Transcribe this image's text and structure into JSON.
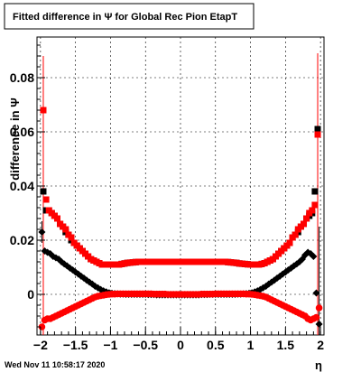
{
  "chart_data": {
    "type": "scatter",
    "title": "Fitted difference in  Ψ  for Global Rec Pion EtapT",
    "xlabel": "η",
    "ylabel": "difference in  Ψ",
    "xlim": [
      -2.05,
      2.05
    ],
    "ylim": [
      -0.015,
      0.095
    ],
    "x_ticks": [
      -2,
      -1.5,
      -1,
      -0.5,
      0,
      0.5,
      1,
      1.5,
      2
    ],
    "x_tick_labels": [
      "−2",
      "−1.5",
      "−1",
      "−0.5",
      "0",
      "0.5",
      "1",
      "1.5",
      "2"
    ],
    "y_ticks": [
      0,
      0.02,
      0.04,
      0.06,
      0.08
    ],
    "y_tick_labels": [
      "0",
      "0.02",
      "0.04",
      "0.06",
      "0.08"
    ],
    "grid": true,
    "series": [
      {
        "color": "#000000",
        "marker": "square",
        "x": [
          -1.96,
          -1.92,
          -1.88,
          -1.84,
          -1.8,
          -1.76,
          -1.72,
          -1.68,
          -1.64,
          -1.6,
          -1.56,
          -1.52,
          -1.48,
          -1.44,
          -1.4,
          -1.36,
          -1.32,
          -1.28,
          -1.24,
          -1.2,
          -1.16,
          -1.12,
          -1.08,
          -1.04,
          -1.0,
          -0.96,
          -0.92,
          -0.88,
          -0.84,
          -0.8,
          -0.76,
          -0.72,
          -0.68,
          -0.64,
          -0.6,
          -0.56,
          -0.52,
          -0.48,
          -0.44,
          -0.4,
          -0.36,
          -0.32,
          -0.28,
          -0.24,
          -0.2,
          -0.16,
          -0.12,
          -0.08,
          -0.04,
          0.0,
          0.04,
          0.08,
          0.12,
          0.16,
          0.2,
          0.24,
          0.28,
          0.32,
          0.36,
          0.4,
          0.44,
          0.48,
          0.52,
          0.56,
          0.6,
          0.64,
          0.68,
          0.72,
          0.76,
          0.8,
          0.84,
          0.88,
          0.92,
          0.96,
          1.0,
          1.04,
          1.08,
          1.12,
          1.16,
          1.2,
          1.24,
          1.28,
          1.32,
          1.36,
          1.4,
          1.44,
          1.48,
          1.52,
          1.56,
          1.6,
          1.64,
          1.68,
          1.72,
          1.76,
          1.8,
          1.84,
          1.88,
          1.92,
          1.96
        ],
        "y": [
          0.038,
          0.031,
          0.031,
          0.03,
          0.029,
          0.028,
          0.026,
          0.025,
          0.023,
          0.022,
          0.02,
          0.019,
          0.018,
          0.017,
          0.016,
          0.015,
          0.014,
          0.013,
          0.0125,
          0.012,
          0.0115,
          0.011,
          0.011,
          0.011,
          0.011,
          0.011,
          0.011,
          0.011,
          0.0112,
          0.0114,
          0.0116,
          0.0117,
          0.0118,
          0.0119,
          0.012,
          0.012,
          0.012,
          0.012,
          0.012,
          0.012,
          0.012,
          0.012,
          0.012,
          0.012,
          0.012,
          0.012,
          0.012,
          0.012,
          0.012,
          0.012,
          0.012,
          0.012,
          0.012,
          0.012,
          0.012,
          0.012,
          0.012,
          0.012,
          0.012,
          0.012,
          0.012,
          0.012,
          0.012,
          0.012,
          0.012,
          0.012,
          0.0119,
          0.0118,
          0.0117,
          0.0116,
          0.0114,
          0.0113,
          0.0112,
          0.0111,
          0.011,
          0.011,
          0.011,
          0.011,
          0.0112,
          0.0115,
          0.012,
          0.0125,
          0.013,
          0.014,
          0.015,
          0.016,
          0.017,
          0.018,
          0.019,
          0.021,
          0.022,
          0.023,
          0.025,
          0.026,
          0.028,
          0.029,
          0.03,
          0.038,
          0.061
        ]
      },
      {
        "color": "#ff0000",
        "marker": "square",
        "x": [
          -1.96,
          -1.92,
          -1.88,
          -1.84,
          -1.8,
          -1.76,
          -1.72,
          -1.68,
          -1.64,
          -1.6,
          -1.56,
          -1.52,
          -1.48,
          -1.44,
          -1.4,
          -1.36,
          -1.32,
          -1.28,
          -1.24,
          -1.2,
          -1.16,
          -1.12,
          -1.08,
          -1.04,
          -1.0,
          -0.96,
          -0.92,
          -0.88,
          -0.84,
          -0.8,
          -0.76,
          -0.72,
          -0.68,
          -0.64,
          -0.6,
          -0.56,
          -0.52,
          -0.48,
          -0.44,
          -0.4,
          -0.36,
          -0.32,
          -0.28,
          -0.24,
          -0.2,
          -0.16,
          -0.12,
          -0.08,
          -0.04,
          0.0,
          0.04,
          0.08,
          0.12,
          0.16,
          0.2,
          0.24,
          0.28,
          0.32,
          0.36,
          0.4,
          0.44,
          0.48,
          0.52,
          0.56,
          0.6,
          0.64,
          0.68,
          0.72,
          0.76,
          0.8,
          0.84,
          0.88,
          0.92,
          0.96,
          1.0,
          1.04,
          1.08,
          1.12,
          1.16,
          1.2,
          1.24,
          1.28,
          1.32,
          1.36,
          1.4,
          1.44,
          1.48,
          1.52,
          1.56,
          1.6,
          1.64,
          1.68,
          1.72,
          1.76,
          1.8,
          1.84,
          1.88,
          1.92,
          1.96
        ],
        "y": [
          0.068,
          0.035,
          0.031,
          0.03,
          0.029,
          0.028,
          0.026,
          0.025,
          0.024,
          0.022,
          0.021,
          0.019,
          0.018,
          0.017,
          0.016,
          0.015,
          0.014,
          0.013,
          0.0125,
          0.012,
          0.0115,
          0.011,
          0.011,
          0.011,
          0.011,
          0.011,
          0.011,
          0.011,
          0.0112,
          0.0114,
          0.0116,
          0.0117,
          0.0118,
          0.0119,
          0.012,
          0.012,
          0.012,
          0.012,
          0.012,
          0.012,
          0.012,
          0.012,
          0.012,
          0.012,
          0.012,
          0.012,
          0.012,
          0.012,
          0.012,
          0.012,
          0.012,
          0.012,
          0.012,
          0.012,
          0.012,
          0.012,
          0.012,
          0.012,
          0.012,
          0.012,
          0.012,
          0.012,
          0.012,
          0.012,
          0.012,
          0.012,
          0.0119,
          0.0118,
          0.0117,
          0.0116,
          0.0114,
          0.0113,
          0.0112,
          0.0111,
          0.011,
          0.011,
          0.011,
          0.011,
          0.0112,
          0.0115,
          0.012,
          0.0125,
          0.013,
          0.014,
          0.015,
          0.016,
          0.017,
          0.018,
          0.019,
          0.021,
          0.022,
          0.024,
          0.025,
          0.026,
          0.028,
          0.03,
          0.031,
          0.033,
          0.059
        ]
      },
      {
        "color": "#000000",
        "marker": "diamond",
        "x": [
          -1.98,
          -1.94,
          -1.9,
          -1.86,
          -1.82,
          -1.78,
          -1.74,
          -1.7,
          -1.66,
          -1.62,
          -1.58,
          -1.54,
          -1.5,
          -1.46,
          -1.42,
          -1.38,
          -1.34,
          -1.3,
          -1.26,
          -1.22,
          -1.18,
          -1.14,
          -1.1,
          -1.06,
          -1.02,
          -0.98,
          -0.94,
          -0.9,
          -0.86,
          -0.82,
          -0.78,
          -0.74,
          -0.7,
          -0.66,
          -0.62,
          -0.58,
          -0.54,
          -0.5,
          -0.46,
          -0.42,
          -0.38,
          -0.34,
          -0.3,
          -0.26,
          -0.22,
          -0.18,
          -0.14,
          -0.1,
          -0.06,
          -0.02,
          0.02,
          0.06,
          0.1,
          0.14,
          0.18,
          0.22,
          0.26,
          0.3,
          0.34,
          0.38,
          0.42,
          0.46,
          0.5,
          0.54,
          0.58,
          0.62,
          0.66,
          0.7,
          0.74,
          0.78,
          0.82,
          0.86,
          0.9,
          0.94,
          0.98,
          1.02,
          1.06,
          1.1,
          1.14,
          1.18,
          1.22,
          1.26,
          1.3,
          1.34,
          1.38,
          1.42,
          1.46,
          1.5,
          1.54,
          1.58,
          1.62,
          1.66,
          1.7,
          1.74,
          1.78,
          1.82,
          1.86,
          1.9,
          1.94,
          1.98
        ],
        "y": [
          0.023,
          0.016,
          0.0155,
          0.015,
          0.014,
          0.0135,
          0.013,
          0.012,
          0.0112,
          0.0105,
          0.0097,
          0.009,
          0.0082,
          0.0075,
          0.0067,
          0.006,
          0.0052,
          0.0045,
          0.0038,
          0.003,
          0.0024,
          0.0018,
          0.0013,
          0.0009,
          0.0006,
          0.0004,
          0.0003,
          0.0002,
          0.0001,
          0.0001,
          0.0,
          0.0,
          0.0,
          0.0,
          0.0,
          0.0,
          0.0,
          0.0,
          -0.0001,
          -0.0001,
          -0.0001,
          -0.0002,
          -0.0002,
          -0.0002,
          -0.0002,
          -0.0002,
          -0.0002,
          -0.0002,
          -0.0002,
          -0.0002,
          -0.0002,
          -0.0002,
          -0.0002,
          -0.0002,
          -0.0002,
          -0.0002,
          -0.0002,
          -0.0001,
          -0.0001,
          -0.0001,
          0.0,
          0.0,
          0.0,
          0.0,
          0.0,
          0.0,
          0.0,
          0.0,
          0.0,
          0.0,
          0.0001,
          0.0001,
          0.0002,
          0.0003,
          0.0004,
          0.0006,
          0.0009,
          0.0013,
          0.0018,
          0.0024,
          0.003,
          0.0038,
          0.0045,
          0.0052,
          0.006,
          0.0067,
          0.0075,
          0.0082,
          0.009,
          0.0097,
          0.0105,
          0.0112,
          0.012,
          0.013,
          0.0145,
          0.0155,
          0.015,
          0.014,
          0.0005,
          -0.011
        ]
      },
      {
        "color": "#ff0000",
        "marker": "circle",
        "x": [
          -1.98,
          -1.94,
          -1.9,
          -1.86,
          -1.82,
          -1.78,
          -1.74,
          -1.7,
          -1.66,
          -1.62,
          -1.58,
          -1.54,
          -1.5,
          -1.46,
          -1.42,
          -1.38,
          -1.34,
          -1.3,
          -1.26,
          -1.22,
          -1.18,
          -1.14,
          -1.1,
          -1.06,
          -1.02,
          -0.98,
          -0.94,
          -0.9,
          -0.86,
          -0.82,
          -0.78,
          -0.74,
          -0.7,
          -0.66,
          -0.62,
          -0.58,
          -0.54,
          -0.5,
          -0.46,
          -0.42,
          -0.38,
          -0.34,
          -0.3,
          -0.26,
          -0.22,
          -0.18,
          -0.14,
          -0.1,
          -0.06,
          -0.02,
          0.02,
          0.06,
          0.1,
          0.14,
          0.18,
          0.22,
          0.26,
          0.3,
          0.34,
          0.38,
          0.42,
          0.46,
          0.5,
          0.54,
          0.58,
          0.62,
          0.66,
          0.7,
          0.74,
          0.78,
          0.82,
          0.86,
          0.9,
          0.94,
          0.98,
          1.02,
          1.06,
          1.1,
          1.14,
          1.18,
          1.22,
          1.26,
          1.3,
          1.34,
          1.38,
          1.42,
          1.46,
          1.5,
          1.54,
          1.58,
          1.62,
          1.66,
          1.7,
          1.74,
          1.78,
          1.82,
          1.86,
          1.9,
          1.94,
          1.98
        ],
        "y": [
          -0.012,
          -0.0095,
          -0.009,
          -0.009,
          -0.0085,
          -0.008,
          -0.0075,
          -0.007,
          -0.0065,
          -0.006,
          -0.0055,
          -0.005,
          -0.0045,
          -0.004,
          -0.0035,
          -0.003,
          -0.0025,
          -0.002,
          -0.0015,
          -0.001,
          -0.0007,
          -0.0005,
          -0.0003,
          -0.0001,
          0.0,
          0.0001,
          0.0001,
          0.0002,
          0.0002,
          0.0002,
          0.0002,
          0.0002,
          0.0002,
          0.0002,
          0.0002,
          0.0002,
          0.0002,
          0.0002,
          0.0002,
          0.0002,
          0.0001,
          0.0001,
          0.0001,
          0.0001,
          0.0001,
          0.0,
          0.0,
          0.0,
          0.0,
          0.0,
          0.0,
          0.0,
          0.0,
          0.0,
          0.0,
          0.0,
          0.0,
          0.0001,
          0.0001,
          0.0001,
          0.0001,
          0.0001,
          0.0002,
          0.0002,
          0.0002,
          0.0002,
          0.0002,
          0.0002,
          0.0002,
          0.0002,
          0.0002,
          0.0002,
          0.0002,
          0.0001,
          0.0001,
          0.0,
          -0.0001,
          -0.0003,
          -0.0005,
          -0.0007,
          -0.001,
          -0.0015,
          -0.002,
          -0.0025,
          -0.003,
          -0.0035,
          -0.004,
          -0.0045,
          -0.005,
          -0.0055,
          -0.006,
          -0.0065,
          -0.007,
          -0.0075,
          -0.008,
          -0.009,
          -0.0095,
          -0.009,
          -0.0085,
          -0.005
        ]
      }
    ],
    "error_bars": [
      {
        "color": "#ff0000",
        "x": -1.96,
        "low": -0.015,
        "high": 0.088
      },
      {
        "color": "#ff0000",
        "x": 1.96,
        "low": -0.015,
        "high": 0.089
      },
      {
        "color": "#000000",
        "x": -1.98,
        "low": 0.019,
        "high": 0.027
      },
      {
        "color": "#000000",
        "x": 1.98,
        "low": -0.015,
        "high": 0.025
      }
    ]
  },
  "footer": {
    "date": "Wed Nov 11 10:58:17 2020"
  }
}
